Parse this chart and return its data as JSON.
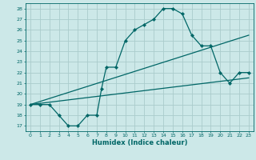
{
  "xlabel": "Humidex (Indice chaleur)",
  "bg_color": "#cce8e8",
  "grid_color": "#aacccc",
  "line_color": "#006666",
  "xlim": [
    -0.5,
    23.5
  ],
  "ylim": [
    16.5,
    28.5
  ],
  "yticks": [
    17,
    18,
    19,
    20,
    21,
    22,
    23,
    24,
    25,
    26,
    27,
    28
  ],
  "xticks": [
    0,
    1,
    2,
    3,
    4,
    5,
    6,
    7,
    8,
    9,
    10,
    11,
    12,
    13,
    14,
    15,
    16,
    17,
    18,
    19,
    20,
    21,
    22,
    23
  ],
  "line1_x": [
    0,
    1,
    2,
    3,
    4,
    5,
    6,
    7,
    7.5,
    8,
    9,
    10,
    11,
    12,
    13,
    14,
    15,
    16,
    17,
    18,
    19,
    20,
    21,
    22,
    23
  ],
  "line1_y": [
    19,
    19,
    19,
    18,
    17,
    17,
    18,
    18,
    20.5,
    22.5,
    22.5,
    25,
    26,
    26.5,
    27,
    28,
    28,
    27.5,
    25.5,
    24.5,
    24.5,
    22,
    21,
    22,
    22
  ],
  "line2_x": [
    0,
    23
  ],
  "line2_y": [
    19,
    25.5
  ],
  "line3_x": [
    0,
    23
  ],
  "line3_y": [
    19,
    21.5
  ],
  "tick_fontsize": 4.5,
  "xlabel_fontsize": 6.0
}
